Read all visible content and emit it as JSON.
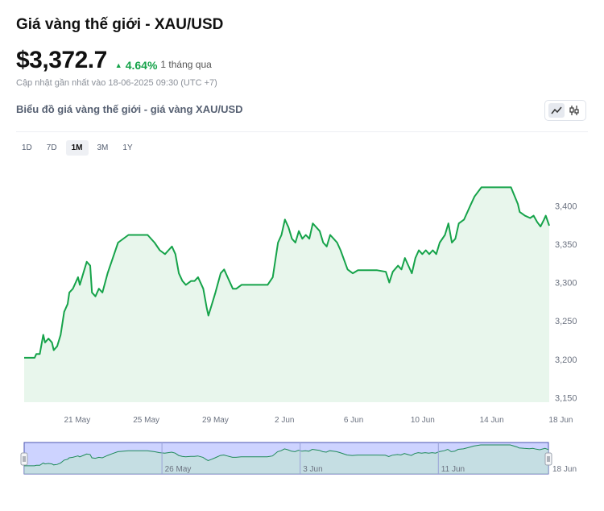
{
  "header": {
    "title": "Giá vàng thế giới - XAU/USD",
    "price": "$3,372.7",
    "change": "4.64%",
    "change_direction": "up",
    "change_period": "1 tháng qua",
    "updated": "Cập nhật gần nhất vào 18-06-2025 09:30 (UTC +7)",
    "chart_title": "Biểu đồ giá vàng thế giới - giá vàng XAU/USD"
  },
  "toolbar": {
    "line_icon": "line-chart-icon",
    "candle_icon": "candlestick-icon"
  },
  "range_buttons": [
    {
      "label": "1D",
      "active": false
    },
    {
      "label": "7D",
      "active": false
    },
    {
      "label": "1M",
      "active": true
    },
    {
      "label": "3M",
      "active": false
    },
    {
      "label": "1Y",
      "active": false
    }
  ],
  "colors": {
    "line": "#16a34a",
    "area": "#e8f6ec",
    "up": "#16a34a",
    "navigator_mask": "#cdd3ff",
    "navigator_border": "#4b55b0"
  },
  "chart_data": {
    "type": "area",
    "title": "",
    "xlabel": "",
    "ylabel": "",
    "ylim": [
      3150,
      3420
    ],
    "y_ticks": [
      "3,150",
      "3,200",
      "3,250",
      "3,300",
      "3,350",
      "3,400"
    ],
    "y_tick_values": [
      3150,
      3200,
      3250,
      3300,
      3350,
      3400
    ],
    "x_ticks": [
      "21 May",
      "25 May",
      "29 May",
      "2 Jun",
      "6 Jun",
      "10 Jun",
      "14 Jun",
      "18 Jun"
    ],
    "x_tick_days": [
      3,
      7,
      11,
      15,
      19,
      23,
      27,
      31
    ],
    "x_axis_note": "days counted from 18 May",
    "series": [
      {
        "values": [
          [
            0.0,
            3202
          ],
          [
            0.6,
            3202
          ],
          [
            0.7,
            3207
          ],
          [
            0.9,
            3207
          ],
          [
            1.1,
            3232
          ],
          [
            1.2,
            3222
          ],
          [
            1.4,
            3227
          ],
          [
            1.6,
            3222
          ],
          [
            1.7,
            3212
          ],
          [
            1.9,
            3217
          ],
          [
            2.1,
            3232
          ],
          [
            2.3,
            3262
          ],
          [
            2.5,
            3272
          ],
          [
            2.6,
            3287
          ],
          [
            2.8,
            3292
          ],
          [
            3.0,
            3302
          ],
          [
            3.1,
            3307
          ],
          [
            3.2,
            3297
          ],
          [
            3.4,
            3312
          ],
          [
            3.6,
            3327
          ],
          [
            3.8,
            3322
          ],
          [
            3.9,
            3287
          ],
          [
            4.1,
            3282
          ],
          [
            4.3,
            3292
          ],
          [
            4.5,
            3287
          ],
          [
            4.8,
            3312
          ],
          [
            5.1,
            3332
          ],
          [
            5.4,
            3352
          ],
          [
            6.0,
            3362
          ],
          [
            7.1,
            3362
          ],
          [
            7.5,
            3352
          ],
          [
            7.8,
            3342
          ],
          [
            8.1,
            3337
          ],
          [
            8.3,
            3342
          ],
          [
            8.5,
            3347
          ],
          [
            8.7,
            3337
          ],
          [
            8.9,
            3312
          ],
          [
            9.1,
            3302
          ],
          [
            9.3,
            3297
          ],
          [
            9.6,
            3302
          ],
          [
            9.8,
            3302
          ],
          [
            10.0,
            3307
          ],
          [
            10.3,
            3292
          ],
          [
            10.5,
            3267
          ],
          [
            10.6,
            3257
          ],
          [
            10.8,
            3272
          ],
          [
            11.0,
            3287
          ],
          [
            11.3,
            3312
          ],
          [
            11.5,
            3317
          ],
          [
            11.7,
            3307
          ],
          [
            12.0,
            3292
          ],
          [
            12.2,
            3292
          ],
          [
            12.5,
            3297
          ],
          [
            14.0,
            3297
          ],
          [
            14.3,
            3307
          ],
          [
            14.6,
            3352
          ],
          [
            14.8,
            3362
          ],
          [
            15.0,
            3382
          ],
          [
            15.2,
            3372
          ],
          [
            15.4,
            3357
          ],
          [
            15.6,
            3352
          ],
          [
            15.8,
            3367
          ],
          [
            16.0,
            3357
          ],
          [
            16.2,
            3362
          ],
          [
            16.4,
            3357
          ],
          [
            16.6,
            3377
          ],
          [
            16.8,
            3372
          ],
          [
            17.0,
            3367
          ],
          [
            17.2,
            3352
          ],
          [
            17.4,
            3347
          ],
          [
            17.6,
            3362
          ],
          [
            17.8,
            3357
          ],
          [
            18.0,
            3352
          ],
          [
            18.2,
            3342
          ],
          [
            18.6,
            3317
          ],
          [
            18.9,
            3312
          ],
          [
            19.2,
            3316
          ],
          [
            20.3,
            3316
          ],
          [
            20.8,
            3314
          ],
          [
            21.0,
            3300
          ],
          [
            21.2,
            3314
          ],
          [
            21.5,
            3322
          ],
          [
            21.7,
            3317
          ],
          [
            21.9,
            3332
          ],
          [
            22.1,
            3322
          ],
          [
            22.3,
            3312
          ],
          [
            22.5,
            3332
          ],
          [
            22.7,
            3342
          ],
          [
            22.9,
            3337
          ],
          [
            23.1,
            3342
          ],
          [
            23.3,
            3337
          ],
          [
            23.5,
            3342
          ],
          [
            23.7,
            3337
          ],
          [
            23.9,
            3352
          ],
          [
            24.2,
            3362
          ],
          [
            24.4,
            3377
          ],
          [
            24.6,
            3352
          ],
          [
            24.8,
            3357
          ],
          [
            25.0,
            3377
          ],
          [
            25.3,
            3382
          ],
          [
            25.7,
            3402
          ],
          [
            25.9,
            3412
          ],
          [
            26.3,
            3424
          ],
          [
            28.0,
            3424
          ],
          [
            28.4,
            3402
          ],
          [
            28.5,
            3392
          ],
          [
            28.8,
            3387
          ],
          [
            29.1,
            3384
          ],
          [
            29.3,
            3387
          ],
          [
            29.5,
            3379
          ],
          [
            29.7,
            3373
          ],
          [
            29.9,
            3382
          ],
          [
            30.0,
            3387
          ],
          [
            30.2,
            3374
          ]
        ]
      }
    ],
    "navigator": {
      "x_labels": [
        "26 May",
        "3 Jun",
        "11 Jun",
        "18 Jun"
      ],
      "x_label_days": [
        8,
        16,
        24,
        31
      ]
    }
  }
}
